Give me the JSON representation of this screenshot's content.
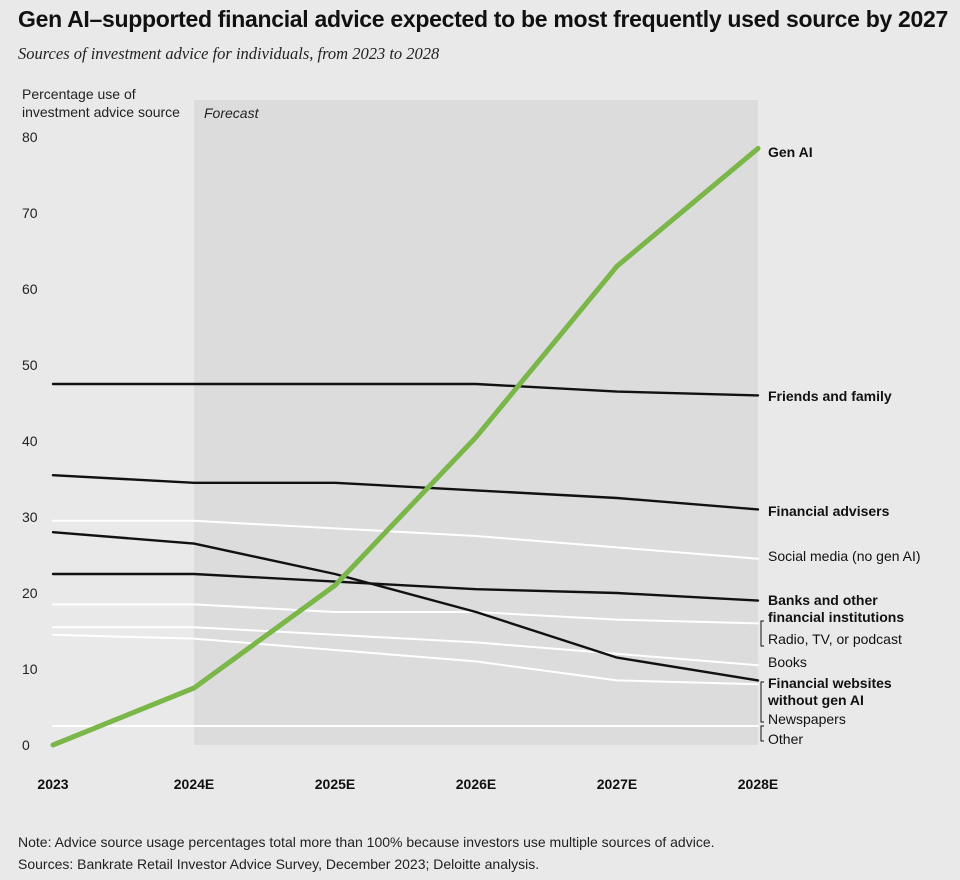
{
  "title": "Gen AI–supported financial advice expected to be most frequently used source by 2027",
  "subtitle": "Sources of investment advice for individuals, from 2023 to 2028",
  "notes": {
    "note": "Note: Advice source usage percentages total more than 100% because investors use multiple sources of advice.",
    "sources": "Sources: Bankrate Retail Investor Advice Survey, December 2023; Deloitte analysis."
  },
  "colors": {
    "background": "#e9e9ea",
    "forecast_band": "#dcdcdd",
    "gen_ai": "#7ab648",
    "dark_series": "#111111",
    "light_series": "#ffffff"
  },
  "chart_data": {
    "type": "line",
    "title": "Gen AI–supported financial advice expected to be most frequently used source by 2027",
    "subtitle": "Sources of investment advice for individuals, from 2023 to 2028",
    "ylabel_lines": [
      "Percentage use of",
      "investment advice source"
    ],
    "xlabel": "",
    "ylim": [
      0,
      80
    ],
    "yticks": [
      0,
      10,
      20,
      30,
      40,
      50,
      60,
      70,
      80
    ],
    "grid": false,
    "forecast_label": "Forecast",
    "forecast_start_index": 1,
    "categories": [
      "2023",
      "2024E",
      "2025E",
      "2026E",
      "2027E",
      "2028E"
    ],
    "series": [
      {
        "name": "Friends and family",
        "label_lines": [
          "Friends and family"
        ],
        "style": "dark",
        "bold": true,
        "values": [
          47.5,
          47.5,
          47.5,
          47.5,
          46.5,
          46.0
        ]
      },
      {
        "name": "Financial advisers",
        "label_lines": [
          "Financial advisers"
        ],
        "style": "dark",
        "bold": true,
        "values": [
          35.5,
          34.5,
          34.5,
          33.5,
          32.5,
          31.0
        ]
      },
      {
        "name": "Social media (no gen AI)",
        "label_lines": [
          "Social media (no gen AI)"
        ],
        "style": "light",
        "bold": false,
        "values": [
          29.5,
          29.5,
          28.5,
          27.5,
          26.0,
          24.5
        ]
      },
      {
        "name": "Banks and other financial institutions",
        "label_lines": [
          "Banks and other",
          "financial institutions"
        ],
        "style": "dark",
        "bold": true,
        "values": [
          22.5,
          22.5,
          21.5,
          20.5,
          20.0,
          19.0
        ]
      },
      {
        "name": "Radio, TV, or podcast",
        "label_lines": [
          "Radio, TV, or podcast"
        ],
        "style": "light",
        "bold": false,
        "values": [
          18.5,
          18.5,
          17.5,
          17.5,
          16.5,
          16.0
        ]
      },
      {
        "name": "Books",
        "label_lines": [
          "Books"
        ],
        "style": "light",
        "bold": false,
        "values": [
          15.5,
          15.5,
          14.5,
          13.5,
          12.0,
          10.5
        ]
      },
      {
        "name": "Financial websites without gen AI",
        "label_lines": [
          "Financial websites",
          "without gen AI"
        ],
        "style": "dark",
        "bold": true,
        "values": [
          28.0,
          26.5,
          22.5,
          17.5,
          11.5,
          8.5
        ]
      },
      {
        "name": "Newspapers",
        "label_lines": [
          "Newspapers"
        ],
        "style": "light",
        "bold": false,
        "values": [
          14.5,
          14.0,
          12.5,
          11.0,
          8.5,
          8.0
        ]
      },
      {
        "name": "Other",
        "label_lines": [
          "Other"
        ],
        "style": "light",
        "bold": false,
        "values": [
          2.5,
          2.5,
          2.5,
          2.5,
          2.5,
          2.5
        ]
      },
      {
        "name": "Gen AI",
        "label_lines": [
          "Gen AI"
        ],
        "style": "green",
        "bold": true,
        "values": [
          0.0,
          7.5,
          21.0,
          40.5,
          63.0,
          78.5
        ]
      }
    ]
  }
}
